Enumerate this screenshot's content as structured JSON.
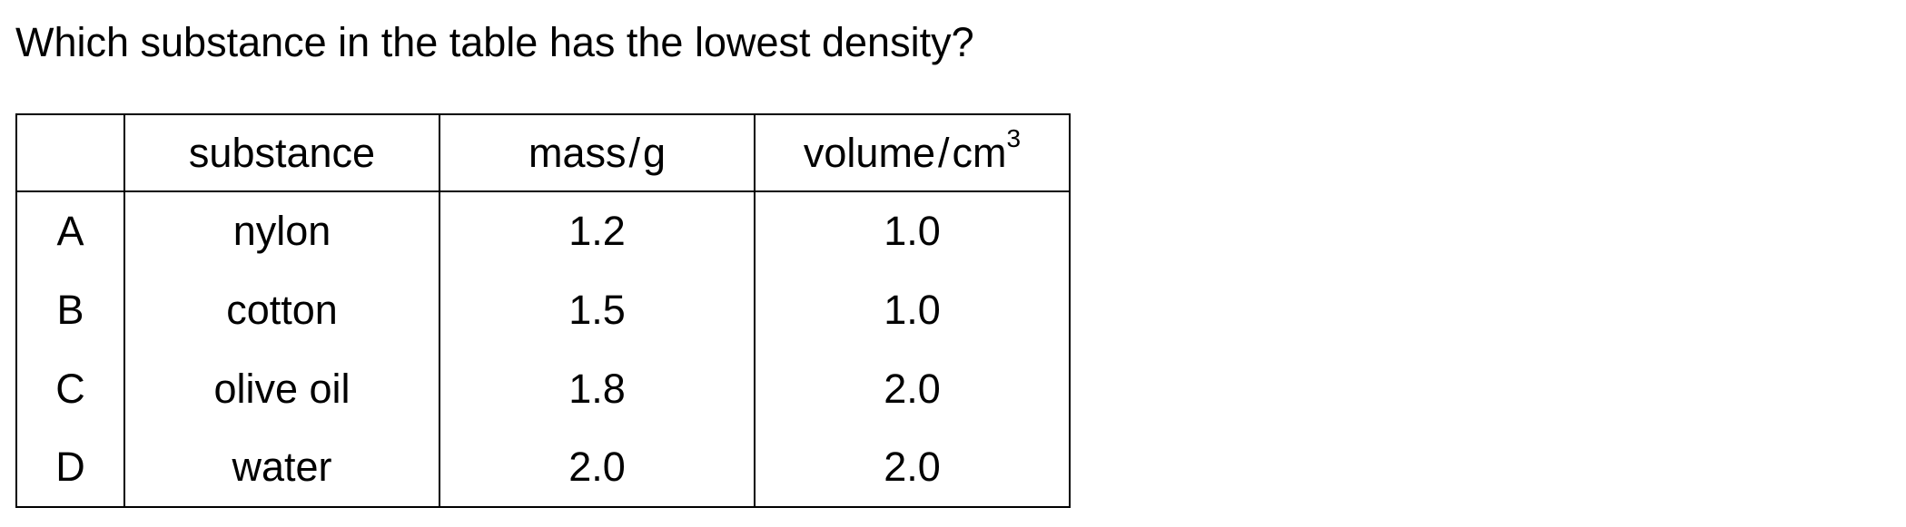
{
  "question": "Which substance in the table has the lowest density?",
  "table": {
    "headers": {
      "letter": "",
      "substance": "substance",
      "mass_quantity": "mass",
      "mass_unit": "g",
      "volume_quantity": "volume",
      "volume_unit": "cm",
      "volume_unit_power": "3",
      "separator": "/"
    },
    "rows": [
      {
        "letter": "A",
        "substance": "nylon",
        "mass": "1.2",
        "volume": "1.0"
      },
      {
        "letter": "B",
        "substance": "cotton",
        "mass": "1.5",
        "volume": "1.0"
      },
      {
        "letter": "C",
        "substance": "olive oil",
        "mass": "1.8",
        "volume": "2.0"
      },
      {
        "letter": "D",
        "substance": "water",
        "mass": "2.0",
        "volume": "2.0"
      }
    ]
  }
}
